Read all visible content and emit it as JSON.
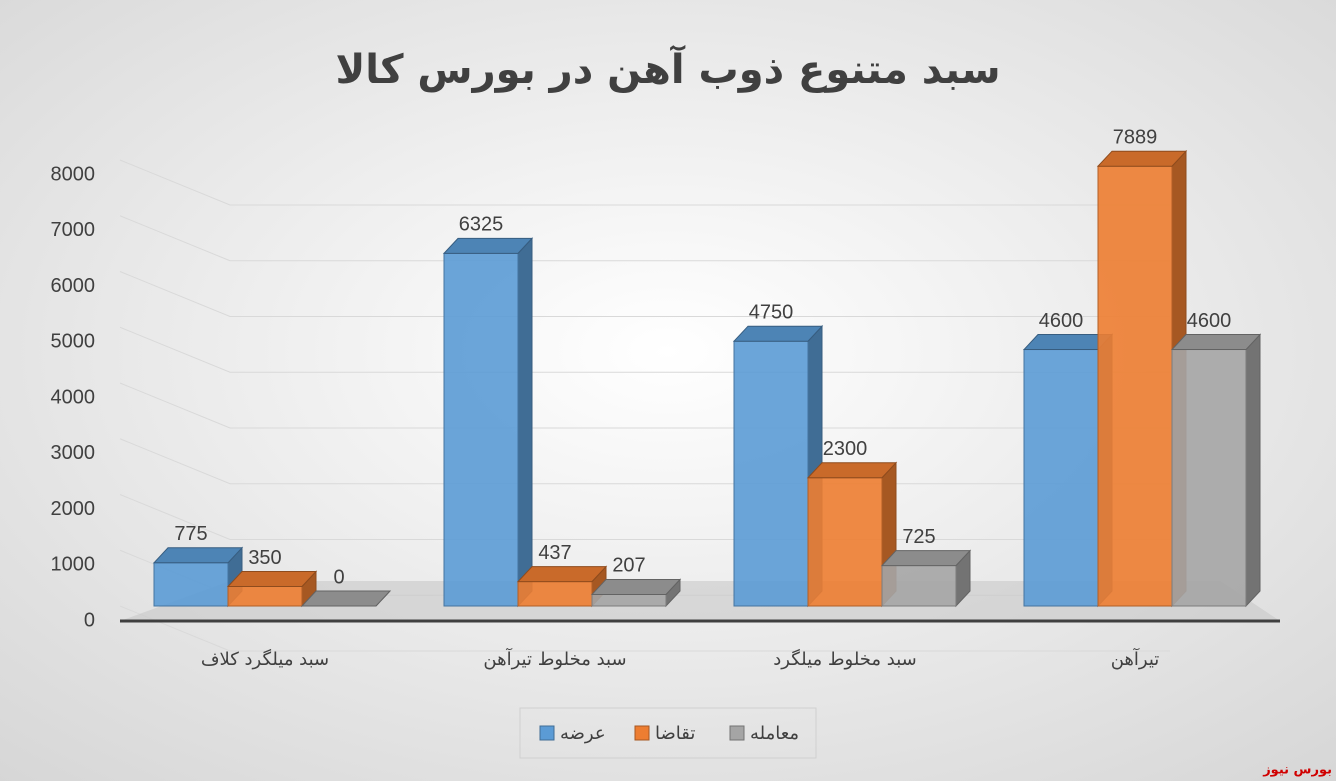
{
  "chart_data": {
    "type": "bar",
    "title": "سبد متنوع ذوب آهن در بورس کالا",
    "categories": [
      "سبد میلگرد کلاف",
      "سبد مخلوط تیرآهن",
      "سبد مخلوط میلگرد",
      "تیرآهن"
    ],
    "series": [
      {
        "name": "عرضه",
        "color": "#5b9bd5",
        "values": [
          775,
          6325,
          4750,
          4600
        ]
      },
      {
        "name": "تقاضا",
        "color": "#ed7d31",
        "values": [
          350,
          437,
          2300,
          7889
        ]
      },
      {
        "name": "معامله",
        "color": "#a5a5a5",
        "values": [
          0,
          207,
          725,
          4600
        ]
      }
    ],
    "ylim": [
      0,
      8000
    ],
    "yticks": [
      0,
      1000,
      2000,
      3000,
      4000,
      5000,
      6000,
      7000,
      8000
    ],
    "grid": true,
    "legend": "bottom",
    "watermark": "بورس نیوز"
  }
}
